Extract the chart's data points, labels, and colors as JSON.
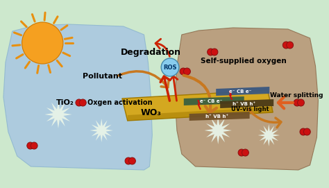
{
  "bg_color": "#cde8cd",
  "left_panel_color": "#aac8e0",
  "right_panel_color": "#b89878",
  "sun_color": "#f5a020",
  "sun_ray_color": "#e89010",
  "wo3_bar_color": "#d4a820",
  "wo3_bar_color2": "#c89810",
  "tio2_label": "TiO₂",
  "wo3_label": "WO₃",
  "degradation_label": "Degradation",
  "pollutant_label": "Pollutant",
  "ros_label": "ROS",
  "oxgen_label": "Oxgen activation",
  "self_supplied_label": "Self-supplied oxygen",
  "water_splitting_label": "Water splitting",
  "uv_vis_label": "UV-vis light",
  "o2_color": "#dd2222",
  "arrow_color_red": "#cc2200",
  "arrow_color_gold": "#c87820",
  "ros_bg_color": "#88ccee",
  "cb_color1": "#3a6a8a",
  "cb_color2": "#3a6a5a",
  "vb_color1": "#7a6030",
  "vb_color2": "#5a4820"
}
